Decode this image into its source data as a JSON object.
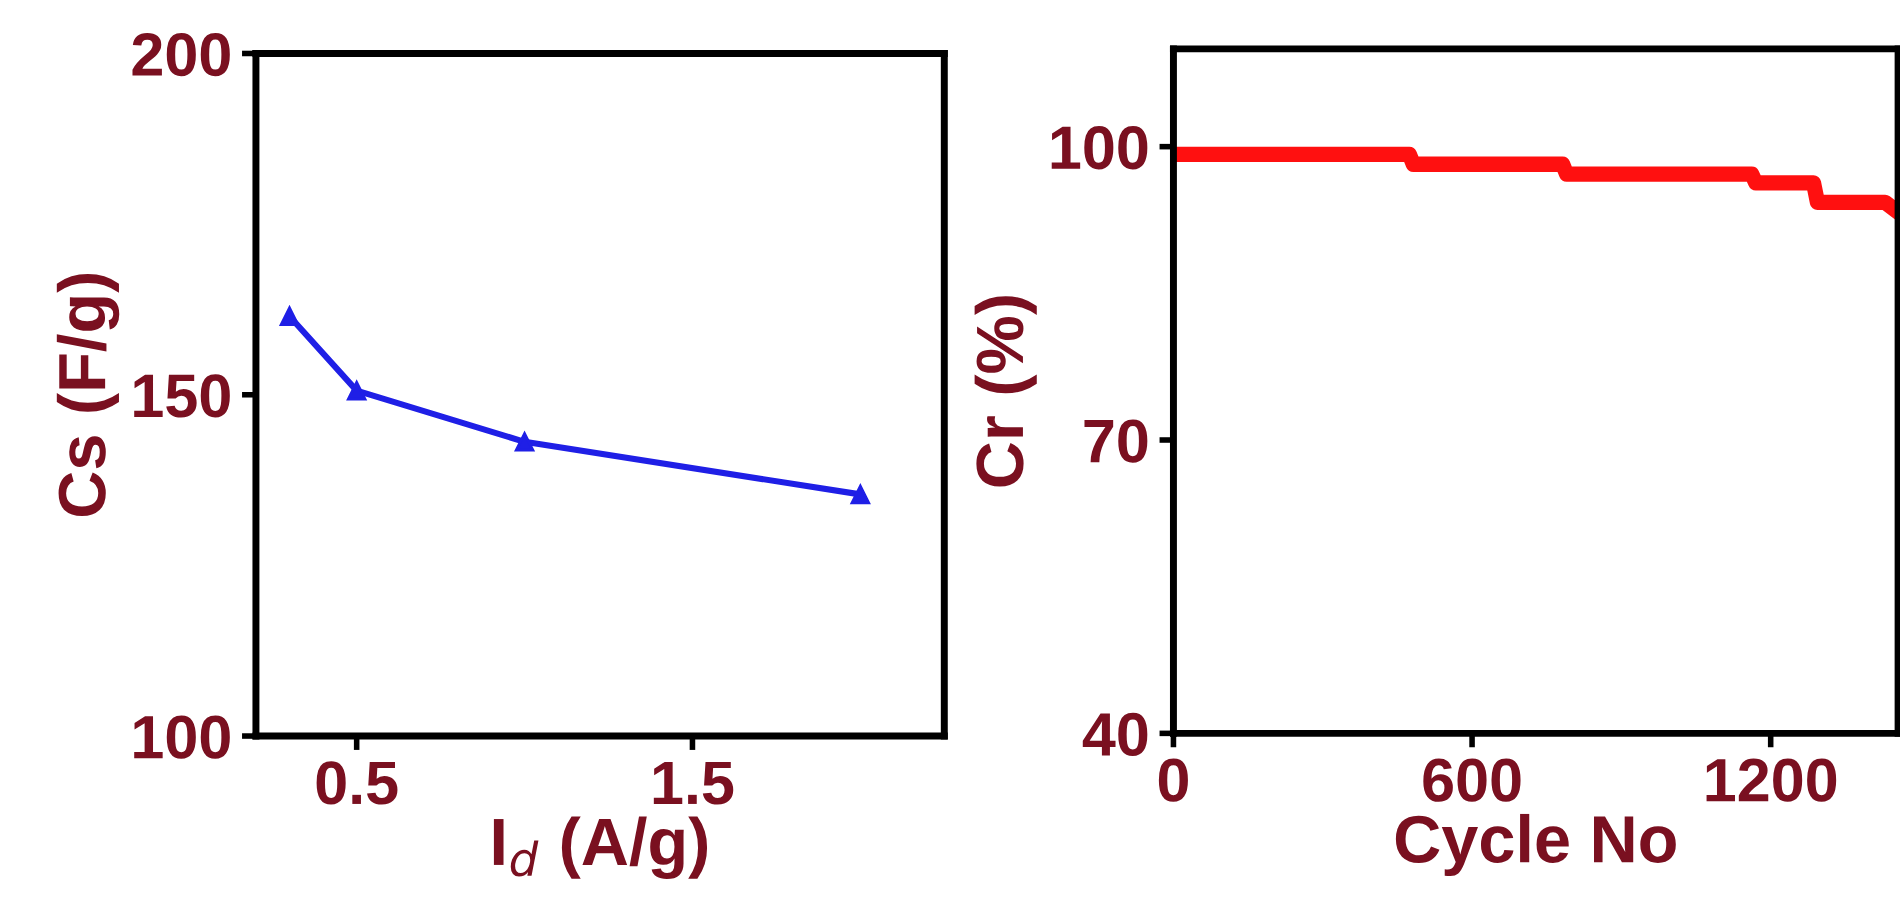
{
  "chart_data": [
    {
      "type": "line",
      "xlabel": "I$_{d}$ (A/g)",
      "ylabel": "Cs (F/g)",
      "x": [
        0.3,
        0.5,
        1.0,
        2.0
      ],
      "series": [
        {
          "color": "#1f1fe6",
          "values": [
            161.5,
            150.6,
            143.1,
            135.4
          ]
        }
      ],
      "xlim": [
        0.2,
        2.25
      ],
      "xticks": [
        0.5,
        1.5
      ],
      "ylim": [
        100,
        200
      ],
      "yticks": [
        100,
        150,
        200
      ],
      "marker": "triangle",
      "grid": false,
      "legend": false
    },
    {
      "type": "line",
      "xlabel": "Cycle No",
      "ylabel": "Cr (%)",
      "x": [
        0,
        474,
        482,
        782,
        790,
        1162,
        1170,
        1286,
        1294,
        1430,
        1456
      ],
      "series": [
        {
          "color": "#ff1010",
          "values": [
            99.2,
            99.2,
            98.2,
            98.2,
            97.2,
            97.2,
            96.3,
            96.3,
            94.3,
            94.3,
            93.3
          ]
        }
      ],
      "xlim": [
        0,
        1456
      ],
      "xticks": [
        0,
        600,
        1200
      ],
      "ylim": [
        40,
        110
      ],
      "yticks": [
        40,
        70,
        100
      ],
      "marker": "none",
      "grid": false,
      "legend": false
    }
  ]
}
